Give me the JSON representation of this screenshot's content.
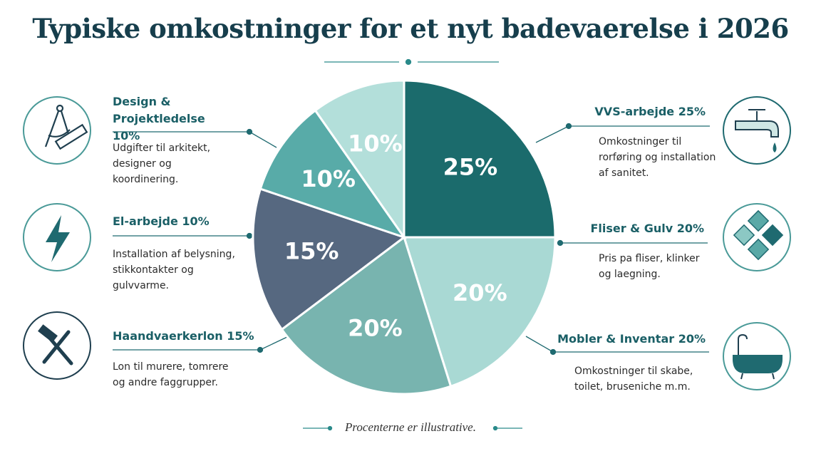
{
  "chart_data": {
    "type": "pie",
    "title": "Typiske omkostninger for et nyt badevaerelse i 2026",
    "categories": [
      "VVS-arbejde 25%",
      "Fliser & Gulv 20%",
      "Mobler & Inventar 20%",
      "Haandvaerkerlon 15%",
      "El-arbejde 10%",
      "Design & Projektledelse 10%"
    ],
    "values": [
      25,
      20,
      20,
      15,
      10,
      10
    ],
    "value_labels": [
      "25%",
      "20%",
      "20%",
      "15%",
      "10%",
      "10%"
    ],
    "colors": [
      "#1b6b6c",
      "#a9d9d4",
      "#78b4af",
      "#566880",
      "#58aba8",
      "#b3dfda"
    ],
    "descriptions": [
      [
        "Omkostninger til",
        "rorføring og installation",
        "af sanitet."
      ],
      [
        "Pris pa fliser, klinker",
        "og laegning."
      ],
      [
        "Omkostninger til skabe,",
        "toilet, bruseniche m.m."
      ],
      [
        "Lon til murere, tomrere",
        "og andre faggrupper."
      ],
      [
        "Installation af belysning,",
        "stikkontakter og",
        "gulvvarme."
      ],
      [
        "Udgifter til arkitekt,",
        "designer og",
        "koordinering."
      ]
    ],
    "note": "Procenterne er illustrative."
  }
}
